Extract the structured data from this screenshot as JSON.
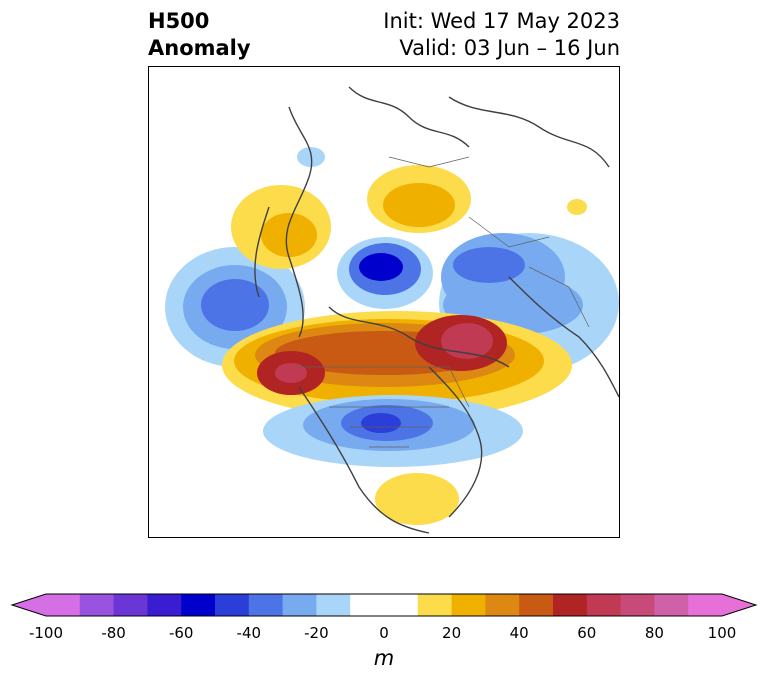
{
  "header": {
    "title_line1": "H500",
    "title_line2": "Anomaly",
    "init_text": "Init: Wed 17 May 2023",
    "valid_text": "Valid: 03 Jun – 16 Jun"
  },
  "colorbar": {
    "unit": "m",
    "ticks": [
      "-100",
      "-80",
      "-60",
      "-40",
      "-20",
      "0",
      "20",
      "40",
      "60",
      "80",
      "100"
    ],
    "colors": [
      "#d66ee6",
      "#9a52e0",
      "#6a36d6",
      "#3a1dd0",
      "#0000cd",
      "#2b3ed8",
      "#4d74e6",
      "#78aaf0",
      "#a9d6f8",
      "#ffffff",
      "#ffffff",
      "#fcdc4a",
      "#f0b000",
      "#dc8812",
      "#c85a14",
      "#b02424",
      "#bf3a52",
      "#c84a78",
      "#d060a8",
      "#e670d8"
    ],
    "under_color": "#d66ee6",
    "over_color": "#e670d8"
  },
  "map": {
    "region": "North America / Arctic polar stereographic",
    "field": "500 hPa geopotential height anomaly"
  }
}
